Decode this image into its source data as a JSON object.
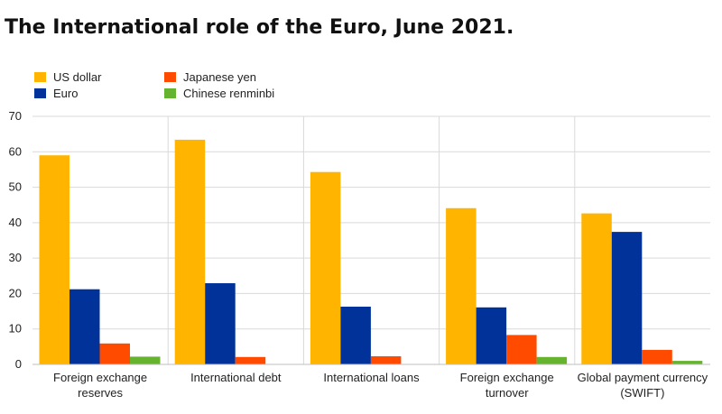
{
  "title": "The International role of the Euro, June 2021.",
  "chart_data": {
    "type": "bar",
    "categories": [
      [
        "Foreign exchange",
        "reserves"
      ],
      [
        "International debt"
      ],
      [
        "International loans"
      ],
      [
        "Foreign exchange",
        "turnover"
      ],
      [
        "Global payment currency",
        "(SWIFT)"
      ]
    ],
    "series": [
      {
        "name": "US dollar",
        "color": "#FFB400",
        "values": [
          59,
          63.4,
          54.3,
          44.1,
          42.6
        ]
      },
      {
        "name": "Euro",
        "color": "#003299",
        "values": [
          21.2,
          22.9,
          16.3,
          16.1,
          37.4
        ]
      },
      {
        "name": "Japanese yen",
        "color": "#FF4B00",
        "values": [
          5.9,
          2.1,
          2.3,
          8.3,
          4.1
        ]
      },
      {
        "name": "Chinese renminbi",
        "color": "#65B32E",
        "values": [
          2.2,
          0,
          0,
          2.1,
          1
        ]
      }
    ],
    "ylim": [
      0,
      70
    ],
    "yticks": [
      0,
      10,
      20,
      30,
      40,
      50,
      60,
      70
    ],
    "grid": true,
    "legend": "top-left",
    "xlabel": "",
    "ylabel": ""
  }
}
